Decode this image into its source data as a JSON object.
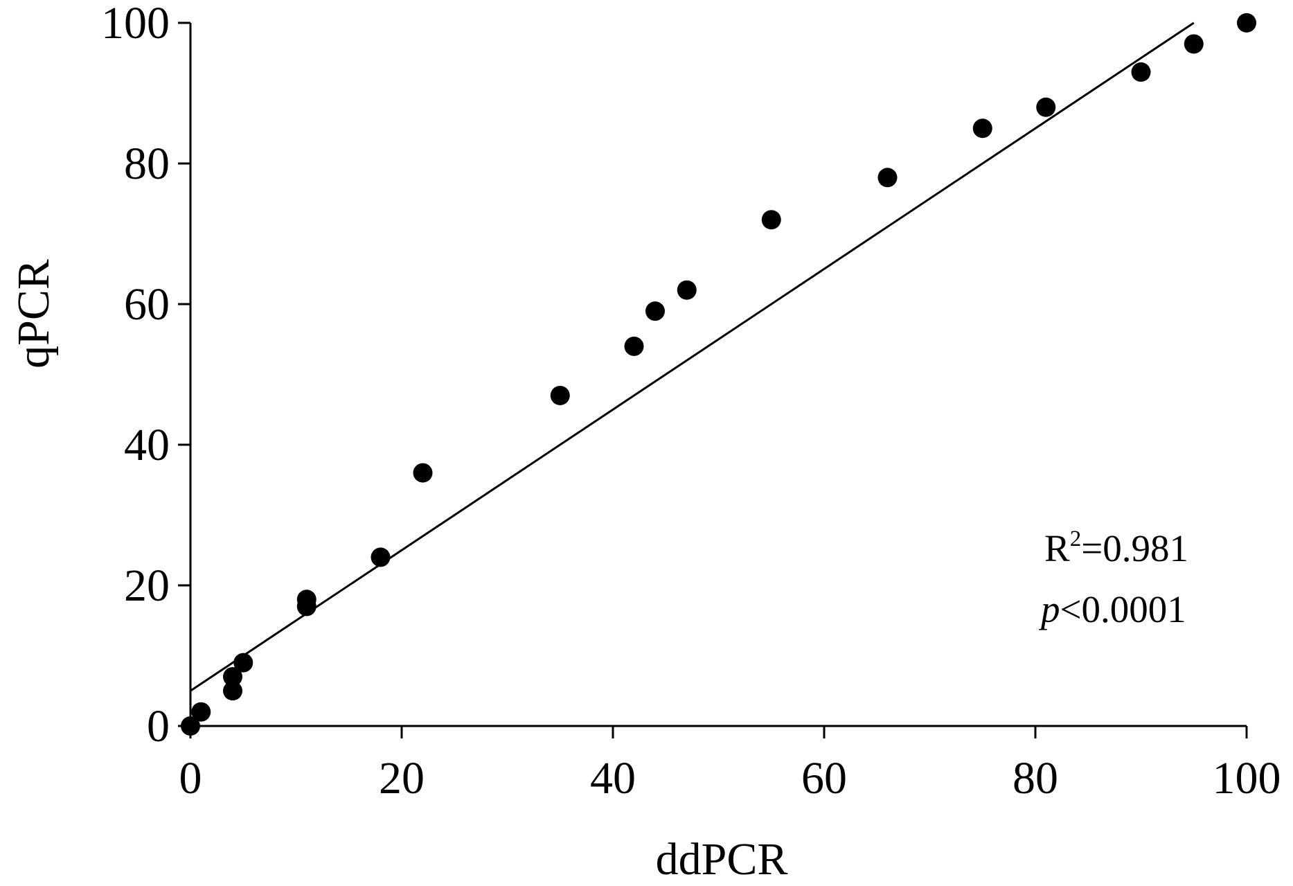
{
  "chart_data": {
    "type": "scatter",
    "xlabel": "ddPCR",
    "ylabel": "qPCR",
    "xlim": [
      0,
      100
    ],
    "ylim": [
      0,
      100
    ],
    "x_ticks": [
      0,
      20,
      40,
      60,
      80,
      100
    ],
    "y_ticks": [
      0,
      20,
      40,
      60,
      80,
      100
    ],
    "grid": false,
    "series": [
      {
        "points": [
          {
            "x": 0,
            "y": 0
          },
          {
            "x": 1,
            "y": 2
          },
          {
            "x": 4,
            "y": 7
          },
          {
            "x": 4,
            "y": 5
          },
          {
            "x": 5,
            "y": 9
          },
          {
            "x": 11,
            "y": 18
          },
          {
            "x": 11,
            "y": 17
          },
          {
            "x": 18,
            "y": 24
          },
          {
            "x": 22,
            "y": 36
          },
          {
            "x": 35,
            "y": 47
          },
          {
            "x": 42,
            "y": 54
          },
          {
            "x": 44,
            "y": 59
          },
          {
            "x": 47,
            "y": 62
          },
          {
            "x": 55,
            "y": 72
          },
          {
            "x": 66,
            "y": 78
          },
          {
            "x": 75,
            "y": 85
          },
          {
            "x": 81,
            "y": 88
          },
          {
            "x": 90,
            "y": 93
          },
          {
            "x": 95,
            "y": 97
          },
          {
            "x": 100,
            "y": 100
          }
        ]
      }
    ],
    "regression_line": {
      "x": [
        0,
        95
      ],
      "y": [
        5,
        100
      ]
    },
    "annotations": {
      "r2_prefix": "R",
      "r2_sup": "2",
      "r2_value": "=0.981",
      "p_italic": "p",
      "p_value": "<0.0001"
    },
    "colors": {
      "points": "#000000",
      "line": "#000000",
      "axis": "#000000"
    }
  }
}
